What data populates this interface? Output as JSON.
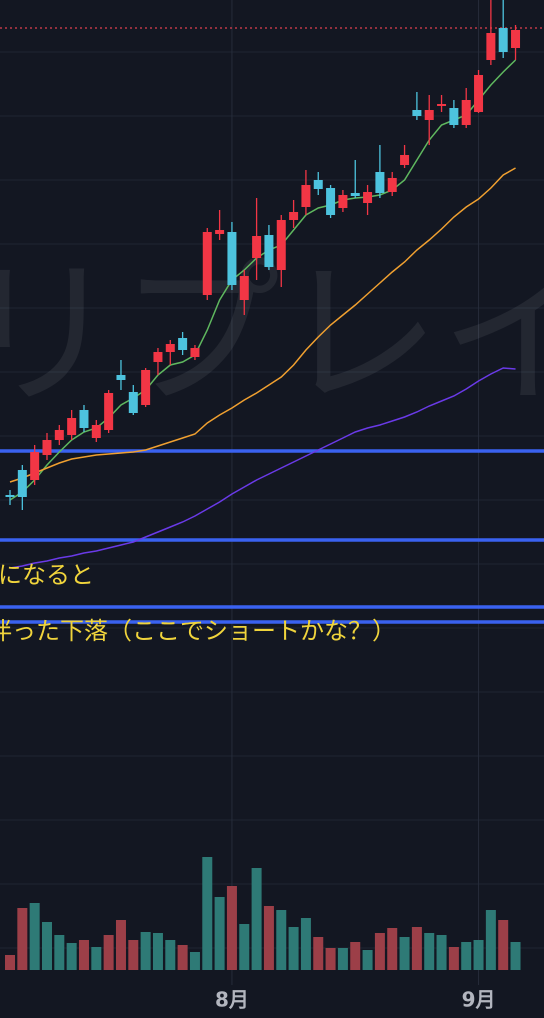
{
  "chart_data": {
    "type": "candlestick",
    "categories": [
      null,
      null,
      null,
      null,
      null,
      null,
      null,
      null,
      null,
      null,
      null,
      null,
      null,
      null,
      null,
      null,
      null,
      null,
      "8月",
      null,
      null,
      null,
      null,
      null,
      null,
      null,
      null,
      null,
      null,
      null,
      null,
      null,
      null,
      null,
      null,
      null,
      null,
      null,
      "9月",
      null,
      null,
      null
    ],
    "open": [
      523,
      548,
      538,
      563,
      578,
      583,
      608,
      580,
      588,
      643,
      626,
      613,
      656,
      666,
      680,
      661,
      723,
      784,
      786,
      718,
      760,
      783,
      748,
      798,
      811,
      838,
      830,
      810,
      825,
      815,
      846,
      826,
      853,
      908,
      898,
      912,
      910,
      893,
      906,
      958,
      990,
      970
    ],
    "high": [
      528,
      553,
      573,
      585,
      593,
      608,
      613,
      598,
      628,
      658,
      633,
      650,
      670,
      678,
      686,
      673,
      790,
      808,
      796,
      748,
      820,
      793,
      803,
      818,
      848,
      846,
      833,
      828,
      858,
      833,
      873,
      846,
      873,
      926,
      923,
      923,
      918,
      930,
      948,
      1018,
      1018,
      993
    ],
    "low": [
      513,
      508,
      533,
      558,
      573,
      578,
      586,
      576,
      585,
      628,
      603,
      611,
      643,
      653,
      663,
      658,
      718,
      778,
      728,
      703,
      738,
      748,
      731,
      790,
      803,
      823,
      800,
      806,
      820,
      803,
      820,
      822,
      850,
      898,
      873,
      906,
      890,
      890,
      905,
      953,
      960,
      958
    ],
    "close": [
      521,
      521,
      566,
      578,
      588,
      600,
      590,
      593,
      625,
      638,
      605,
      648,
      666,
      674,
      668,
      670,
      786,
      788,
      733,
      742,
      782,
      751,
      798,
      806,
      833,
      829,
      803,
      823,
      822,
      826,
      825,
      840,
      863,
      902,
      908,
      914,
      893,
      918,
      943,
      985,
      966,
      988
    ],
    "up_color": "#f23645",
    "down_color": "#4dc3de",
    "ylim": [
      0,
      1018
    ],
    "yticks": [
      70,
      134,
      198,
      262,
      326,
      390,
      454,
      518,
      582,
      646,
      710,
      774,
      838,
      902,
      966
    ],
    "grid": true,
    "volume": {
      "values": [
        15,
        62,
        67,
        48,
        35,
        27,
        30,
        23,
        35,
        50,
        30,
        38,
        37,
        30,
        25,
        18,
        113,
        73,
        84,
        46,
        102,
        64,
        60,
        43,
        52,
        33,
        22,
        22,
        28,
        20,
        37,
        42,
        33,
        43,
        37,
        35,
        23,
        28,
        30,
        60,
        50,
        28
      ],
      "up": [
        true,
        true,
        false,
        false,
        false,
        false,
        true,
        false,
        true,
        true,
        true,
        false,
        false,
        false,
        true,
        false,
        false,
        false,
        true,
        false,
        false,
        true,
        false,
        false,
        false,
        true,
        true,
        false,
        true,
        false,
        true,
        true,
        false,
        true,
        false,
        false,
        true,
        false,
        false,
        false,
        true,
        false
      ],
      "up_color": "#9c3f48",
      "down_color": "#2e7a76",
      "ylim": [
        0,
        120
      ]
    },
    "moving_averages": [
      {
        "color": "#5fb85f",
        "values": [
          518,
          526,
          538,
          553,
          566,
          578,
          586,
          590,
          600,
          613,
          620,
          628,
          643,
          653,
          656,
          663,
          688,
          718,
          738,
          748,
          760,
          768,
          773,
          788,
          803,
          810,
          813,
          818,
          820,
          821,
          823,
          828,
          838,
          858,
          878,
          893,
          898,
          903,
          918,
          933,
          946,
          958
        ]
      },
      {
        "color": "#f0a030",
        "values": [
          536,
          540,
          545,
          550,
          555,
          559,
          561,
          563,
          564,
          565,
          566,
          568,
          572,
          576,
          580,
          584,
          595,
          603,
          610,
          618,
          625,
          633,
          641,
          653,
          668,
          681,
          693,
          703,
          713,
          724,
          735,
          746,
          756,
          768,
          778,
          789,
          801,
          811,
          819,
          830,
          843,
          850
        ]
      },
      {
        "color": "#6a3ae8",
        "values": [
          450,
          452,
          455,
          457,
          460,
          462,
          465,
          467,
          470,
          473,
          476,
          481,
          486,
          491,
          496,
          502,
          509,
          516,
          524,
          531,
          538,
          544,
          550,
          556,
          562,
          568,
          574,
          580,
          586,
          590,
          593,
          597,
          601,
          606,
          612,
          617,
          622,
          629,
          637,
          644,
          650,
          649
        ]
      }
    ],
    "hlines": [
      {
        "value": 567,
        "color": "#3a62f0",
        "style": "solid"
      },
      {
        "value": 478,
        "color": "#3a62f0",
        "style": "solid"
      },
      {
        "value": 411,
        "color": "#3a62f0",
        "style": "solid"
      },
      {
        "value": 396,
        "color": "#3a62f0",
        "style": "solid"
      },
      {
        "value": 990,
        "color": "#e04050",
        "style": "dotted"
      }
    ],
    "annotations": [
      "になると",
      "伴った下落（ここでショートかな？）"
    ],
    "annotation_color": "#f0d43c",
    "watermark": "リプレイ"
  }
}
